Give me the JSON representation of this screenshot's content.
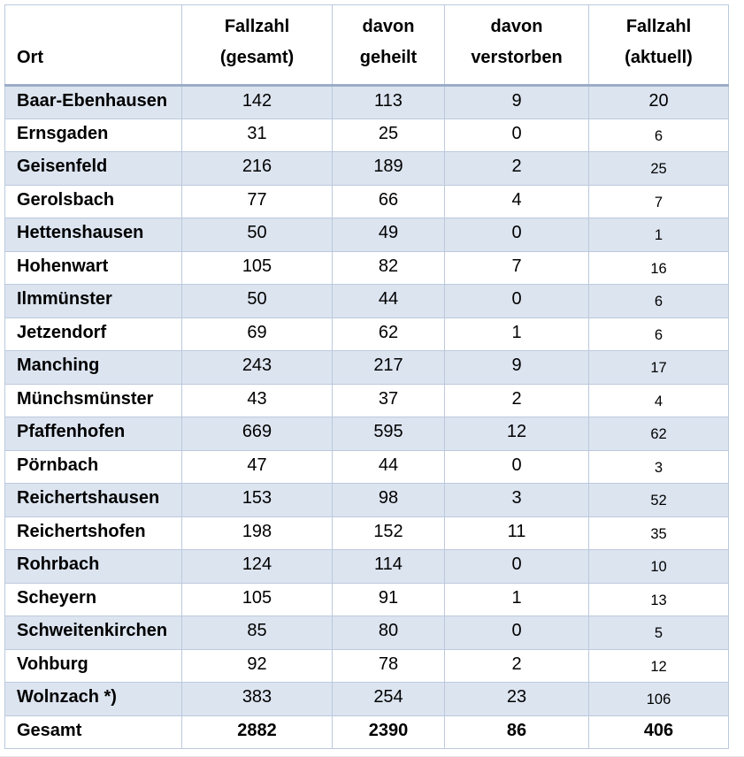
{
  "table": {
    "header": {
      "ort": "Ort",
      "c2l1": "Fallzahl",
      "c2l2": "(gesamt)",
      "c3l1": "davon",
      "c3l2": "geheilt",
      "c4l1": "davon",
      "c4l2": "verstorben",
      "c5l1": "Fallzahl",
      "c5l2": "(aktuell)"
    },
    "rows": [
      {
        "ort": "Baar-Ebenhausen",
        "gesamt": "142",
        "geheilt": "113",
        "verstorben": "9",
        "aktuell": "20"
      },
      {
        "ort": "Ernsgaden",
        "gesamt": "31",
        "geheilt": "25",
        "verstorben": "0",
        "aktuell": "6"
      },
      {
        "ort": "Geisenfeld",
        "gesamt": "216",
        "geheilt": "189",
        "verstorben": "2",
        "aktuell": "25"
      },
      {
        "ort": "Gerolsbach",
        "gesamt": "77",
        "geheilt": "66",
        "verstorben": "4",
        "aktuell": "7"
      },
      {
        "ort": "Hettenshausen",
        "gesamt": "50",
        "geheilt": "49",
        "verstorben": "0",
        "aktuell": "1"
      },
      {
        "ort": "Hohenwart",
        "gesamt": "105",
        "geheilt": "82",
        "verstorben": "7",
        "aktuell": "16"
      },
      {
        "ort": "Ilmmünster",
        "gesamt": "50",
        "geheilt": "44",
        "verstorben": "0",
        "aktuell": "6"
      },
      {
        "ort": "Jetzendorf",
        "gesamt": "69",
        "geheilt": "62",
        "verstorben": "1",
        "aktuell": "6"
      },
      {
        "ort": "Manching",
        "gesamt": "243",
        "geheilt": "217",
        "verstorben": "9",
        "aktuell": "17"
      },
      {
        "ort": "Münchsmünster",
        "gesamt": "43",
        "geheilt": "37",
        "verstorben": "2",
        "aktuell": "4"
      },
      {
        "ort": "Pfaffenhofen",
        "gesamt": "669",
        "geheilt": "595",
        "verstorben": "12",
        "aktuell": "62"
      },
      {
        "ort": "Pörnbach",
        "gesamt": "47",
        "geheilt": "44",
        "verstorben": "0",
        "aktuell": "3"
      },
      {
        "ort": "Reichertshausen",
        "gesamt": "153",
        "geheilt": "98",
        "verstorben": "3",
        "aktuell": "52"
      },
      {
        "ort": "Reichertshofen",
        "gesamt": "198",
        "geheilt": "152",
        "verstorben": "11",
        "aktuell": "35"
      },
      {
        "ort": "Rohrbach",
        "gesamt": "124",
        "geheilt": "114",
        "verstorben": "0",
        "aktuell": "10"
      },
      {
        "ort": "Scheyern",
        "gesamt": "105",
        "geheilt": "91",
        "verstorben": "1",
        "aktuell": "13"
      },
      {
        "ort": "Schweitenkirchen",
        "gesamt": "85",
        "geheilt": "80",
        "verstorben": "0",
        "aktuell": "5"
      },
      {
        "ort": "Vohburg",
        "gesamt": "92",
        "geheilt": "78",
        "verstorben": "2",
        "aktuell": "12"
      },
      {
        "ort": "Wolnzach *)",
        "gesamt": "383",
        "geheilt": "254",
        "verstorben": "23",
        "aktuell": "106"
      }
    ],
    "total": {
      "ort": "Gesamt",
      "gesamt": "2882",
      "geheilt": "2390",
      "verstorben": "86",
      "aktuell": "406"
    },
    "colors": {
      "row_shade": "#dce4f0",
      "cell_border": "#bcc9dd",
      "header_rule": "#9badc7",
      "text": "#000000"
    }
  }
}
